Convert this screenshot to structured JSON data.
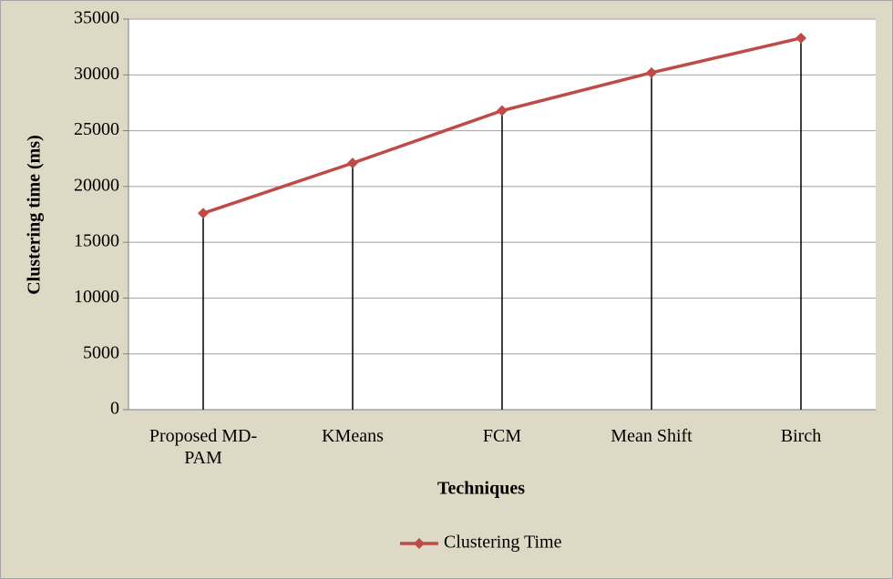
{
  "chart_data": {
    "type": "line",
    "x_label": "Techniques",
    "y_label": "Clustering time (ms)",
    "categories": [
      "Proposed MD-PAM",
      "KMeans",
      "FCM",
      "Mean Shift",
      "Birch"
    ],
    "series": [
      {
        "name": "Clustering Time",
        "color": "#be4b48",
        "values": [
          17600,
          22100,
          26800,
          30200,
          33300
        ]
      }
    ],
    "ylim": [
      0,
      35000
    ],
    "yticks": [
      0,
      5000,
      10000,
      15000,
      20000,
      25000,
      30000,
      35000
    ],
    "grid": true,
    "drop_lines": true,
    "legend": "bottom"
  }
}
